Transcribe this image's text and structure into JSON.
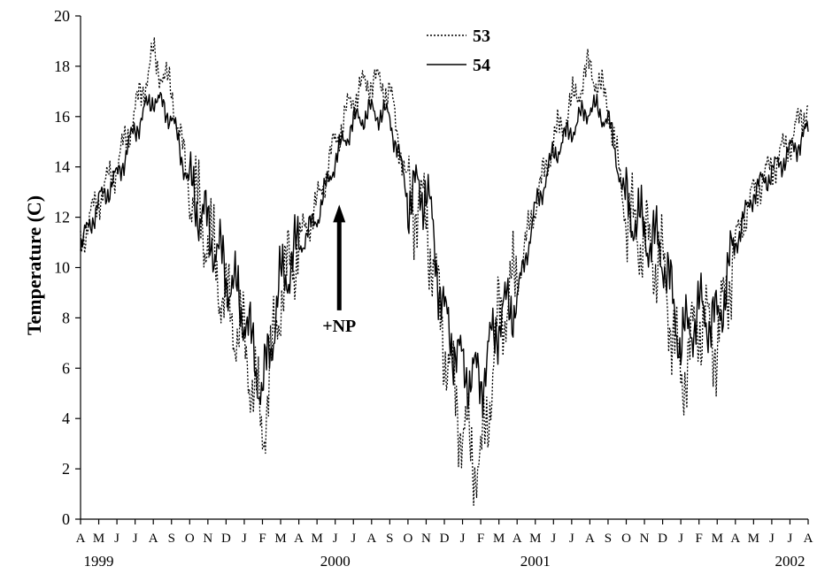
{
  "chart_data": {
    "type": "line",
    "title": "",
    "xlabel": "",
    "ylabel": "Temperature (C)",
    "ylim": [
      0,
      20
    ],
    "yticks": [
      0,
      2,
      4,
      6,
      8,
      10,
      12,
      14,
      16,
      18,
      20
    ],
    "grid": false,
    "legend_position": "top-center",
    "x_start": "1999-04",
    "x_end": "2002-08",
    "month_ticks": [
      "A",
      "M",
      "J",
      "J",
      "A",
      "S",
      "O",
      "N",
      "D",
      "J",
      "F",
      "M",
      "A",
      "M",
      "J",
      "J",
      "A",
      "S",
      "O",
      "N",
      "D",
      "J",
      "F",
      "M",
      "A",
      "M",
      "J",
      "J",
      "A",
      "S",
      "O",
      "N",
      "D",
      "J",
      "F",
      "M",
      "A",
      "M",
      "J",
      "J",
      "A"
    ],
    "year_labels": [
      {
        "label": "1999",
        "month": "1999-05"
      },
      {
        "label": "2000",
        "month": "2000-06"
      },
      {
        "label": "2001",
        "month": "2001-05"
      },
      {
        "label": "2002",
        "month": "2002-07"
      }
    ],
    "x": [
      "1999-04",
      "1999-05",
      "1999-06",
      "1999-07",
      "1999-08",
      "1999-09",
      "1999-10",
      "1999-11",
      "1999-12",
      "2000-01",
      "2000-02",
      "2000-03",
      "2000-04",
      "2000-05",
      "2000-06",
      "2000-07",
      "2000-08",
      "2000-09",
      "2000-10",
      "2000-11",
      "2000-12",
      "2001-01",
      "2001-02",
      "2001-03",
      "2001-04",
      "2001-05",
      "2001-06",
      "2001-07",
      "2001-08",
      "2001-09",
      "2001-10",
      "2001-11",
      "2001-12",
      "2002-01",
      "2002-02",
      "2002-03",
      "2002-04",
      "2002-05",
      "2002-06",
      "2002-07",
      "2002-08"
    ],
    "series": [
      {
        "name": "53",
        "style": "dotted",
        "values": [
          11.0,
          12.8,
          14.0,
          16.2,
          18.4,
          17.0,
          13.2,
          11.2,
          8.5,
          7.0,
          3.5,
          9.0,
          11.0,
          12.5,
          15.0,
          16.8,
          17.5,
          17.0,
          13.0,
          12.0,
          7.0,
          3.5,
          2.0,
          8.0,
          9.5,
          12.5,
          15.0,
          16.5,
          18.0,
          16.5,
          12.0,
          11.0,
          10.0,
          5.5,
          8.0,
          7.0,
          11.0,
          13.0,
          14.0,
          15.0,
          16.5
        ]
      },
      {
        "name": "54",
        "style": "solid",
        "values": [
          10.8,
          12.6,
          13.6,
          15.5,
          16.8,
          16.0,
          13.2,
          11.6,
          9.8,
          8.2,
          5.0,
          9.4,
          10.8,
          12.0,
          14.3,
          15.8,
          16.2,
          16.0,
          12.8,
          13.2,
          8.0,
          6.0,
          5.5,
          8.0,
          8.8,
          12.3,
          14.5,
          15.5,
          16.4,
          15.9,
          12.5,
          11.4,
          10.6,
          7.0,
          8.3,
          7.8,
          11.0,
          13.0,
          13.8,
          14.6,
          15.4
        ]
      }
    ],
    "annotations": [
      {
        "text": "+NP",
        "month": "2000-07",
        "y": 8.3,
        "arrow_to_y": 12.5
      }
    ]
  }
}
